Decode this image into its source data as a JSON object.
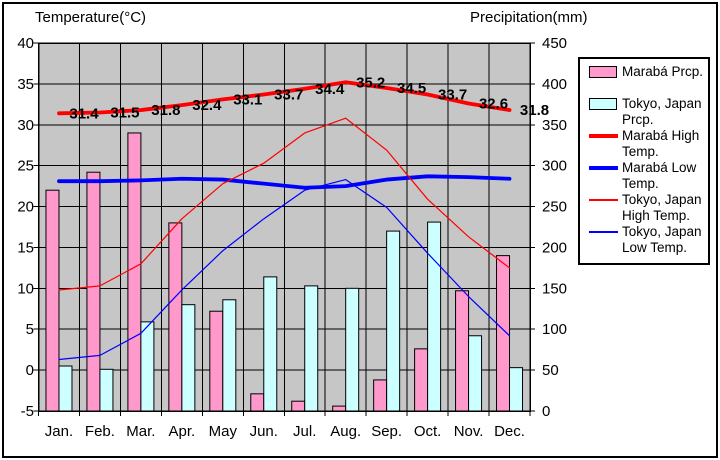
{
  "figure": {
    "title_left": "Temperature(°C)",
    "title_right": "Precipitation(mm)"
  },
  "chart_data": {
    "type": "combo-bar-line-climate-chart",
    "categories": [
      "Jan.",
      "Feb.",
      "Mar.",
      "Apr.",
      "May",
      "Jun.",
      "Jul.",
      "Aug.",
      "Sep.",
      "Oct.",
      "Nov.",
      "Dec."
    ],
    "temperature_axis": {
      "side": "left",
      "label": "Temperature(°C)",
      "min": -5,
      "max": 40,
      "step": 5,
      "ticks": [
        40,
        35,
        30,
        25,
        20,
        15,
        10,
        5,
        0,
        -5
      ]
    },
    "precipitation_axis": {
      "side": "right",
      "label": "Precipitation(mm)",
      "min": 0,
      "max": 450,
      "step": 50,
      "ticks": [
        450,
        400,
        350,
        300,
        250,
        200,
        150,
        100,
        50,
        0
      ]
    },
    "plot_background": "#c6c6c6",
    "gridlines": true,
    "legend_position": "right",
    "series": [
      {
        "id": "maraba-prcp",
        "name": "Marabá Prcp.",
        "type": "bar",
        "axis": "precipitation",
        "color": "#ff99cc",
        "values": [
          270,
          292,
          340,
          230,
          122,
          21,
          12,
          6,
          38,
          76,
          147,
          190
        ]
      },
      {
        "id": "tokyo-prcp",
        "name": "Tokyo, Japan Prcp.",
        "type": "bar",
        "axis": "precipitation",
        "color": "#ccffff",
        "values": [
          55,
          51,
          109,
          130,
          136,
          164,
          153,
          150,
          220,
          231,
          92,
          53
        ]
      },
      {
        "id": "maraba-high-temp",
        "name": "Marabá High Temp.",
        "type": "line",
        "axis": "temperature",
        "color": "#ff0000",
        "thickness": "thick",
        "data_labels": true,
        "values": [
          31.4,
          31.5,
          31.8,
          32.4,
          33.1,
          33.7,
          34.4,
          35.2,
          34.5,
          33.7,
          32.6,
          31.8
        ]
      },
      {
        "id": "maraba-low-temp",
        "name": "Marabá Low Temp.",
        "type": "line",
        "axis": "temperature",
        "color": "#0000ff",
        "thickness": "thick",
        "data_labels": false,
        "values": [
          23.1,
          23.1,
          23.2,
          23.4,
          23.3,
          22.8,
          22.3,
          22.5,
          23.3,
          23.7,
          23.6,
          23.4
        ]
      },
      {
        "id": "tokyo-high-temp",
        "name": "Tokyo, Japan High Temp.",
        "type": "line",
        "axis": "temperature",
        "color": "#ff0000",
        "thickness": "thin",
        "data_labels": false,
        "values": [
          9.8,
          10.3,
          13.0,
          18.5,
          22.8,
          25.3,
          29.0,
          30.8,
          26.9,
          20.9,
          16.3,
          12.5
        ]
      },
      {
        "id": "tokyo-low-temp",
        "name": "Tokyo, Japan Low Temp.",
        "type": "line",
        "axis": "temperature",
        "color": "#0000ff",
        "thickness": "thin",
        "data_labels": false,
        "values": [
          1.3,
          1.8,
          4.5,
          9.8,
          14.6,
          18.5,
          22.0,
          23.3,
          19.9,
          14.3,
          9.0,
          4.2
        ]
      }
    ]
  }
}
